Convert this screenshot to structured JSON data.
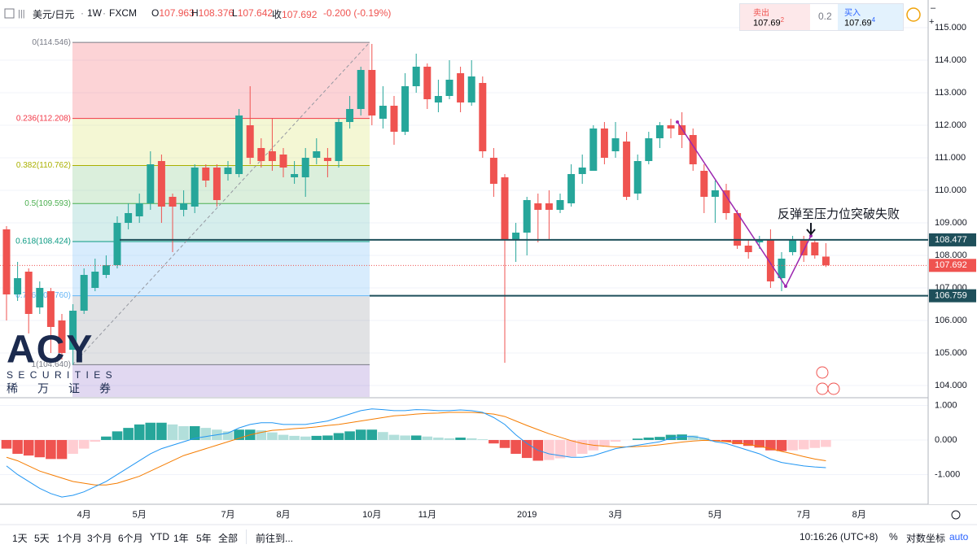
{
  "header": {
    "symbol": "美元/日元",
    "interval": "1W",
    "source": "FXCM",
    "open_label": "O",
    "open": 107.963,
    "high_label": "H",
    "high": 108.376,
    "low_label": "L",
    "low": 107.642,
    "close_label": "收",
    "close": 107.692,
    "change": {
      "value": -0.2,
      "label": "-0.200"
    },
    "change_pct": {
      "value": -0.19,
      "label": "(-0.19%)"
    }
  },
  "quote": {
    "sell_label": "卖出",
    "sell_price": "107.69",
    "sell_pip": "2",
    "spread": "0.2",
    "buy_label": "买入",
    "buy_price": "107.69",
    "buy_pip": "4"
  },
  "logo": {
    "name": "ACY",
    "sub": "SECURITIES",
    "cn": [
      "稀",
      "万",
      "证",
      "券"
    ]
  },
  "chart_data": {
    "type": "candlestick",
    "categories": [
      null,
      null,
      null,
      null,
      null,
      null,
      null,
      "4月",
      null,
      null,
      null,
      null,
      "5月",
      null,
      null,
      null,
      null,
      null,
      null,
      null,
      "7月",
      null,
      null,
      null,
      null,
      "8月",
      null,
      null,
      null,
      null,
      null,
      null,
      null,
      "10月",
      null,
      null,
      null,
      null,
      "11月",
      null,
      null,
      null,
      null,
      null,
      null,
      null,
      null,
      "2019",
      null,
      null,
      null,
      null,
      null,
      null,
      null,
      "3月",
      null,
      null,
      null,
      null,
      null,
      null,
      null,
      null,
      "5月",
      null,
      null,
      null,
      null,
      null,
      null,
      null,
      "7月",
      null,
      null,
      null,
      null,
      "8月"
    ],
    "open": [
      108.8,
      106.8,
      107.5,
      106.4,
      106.9,
      106.0,
      105.1,
      106.3,
      107.0,
      107.4,
      107.7,
      109.0,
      109.2,
      109.6,
      110.9,
      109.8,
      109.4,
      109.5,
      110.7,
      110.7,
      110.5,
      110.5,
      112.0,
      111.3,
      111.2,
      111.1,
      110.4,
      110.4,
      111.0,
      111.0,
      110.9,
      112.1,
      112.5,
      113.7,
      112.2,
      112.6,
      111.8,
      113.2,
      113.8,
      112.7,
      112.9,
      113.6,
      112.7,
      113.3,
      111.0,
      110.4,
      108.5,
      108.7,
      109.6,
      109.6,
      109.4,
      109.6,
      110.5,
      110.6,
      111.9,
      111.2,
      111.5,
      109.9,
      110.9,
      111.6,
      112.0,
      112.0,
      111.7,
      110.6,
      109.8,
      110.0,
      109.3,
      108.3,
      108.4,
      108.5,
      107.3,
      108.1,
      108.5,
      108.4,
      107.963,
      null,
      null,
      null
    ],
    "high": [
      108.9,
      107.8,
      107.6,
      107.2,
      107.0,
      106.2,
      106.5,
      107.6,
      107.9,
      108.0,
      109.2,
      109.6,
      109.9,
      111.2,
      111.1,
      109.9,
      110.0,
      110.8,
      110.8,
      110.8,
      110.9,
      112.5,
      113.2,
      111.6,
      112.2,
      111.3,
      110.9,
      111.3,
      111.6,
      111.3,
      112.2,
      112.9,
      113.8,
      114.5,
      113.2,
      112.9,
      113.6,
      114.2,
      113.9,
      113.4,
      114.0,
      113.8,
      114.0,
      113.5,
      111.3,
      110.5,
      109.0,
      109.8,
      109.9,
      110.0,
      109.9,
      110.8,
      111.1,
      112.0,
      112.1,
      112.1,
      111.8,
      111.1,
      111.8,
      112.1,
      112.2,
      112.4,
      111.9,
      110.8,
      110.3,
      110.2,
      109.4,
      108.5,
      108.6,
      108.8,
      108.1,
      108.6,
      108.6,
      108.5,
      108.376,
      null,
      null,
      null
    ],
    "low": [
      106.0,
      106.6,
      105.6,
      106.2,
      105.0,
      104.8,
      104.64,
      106.2,
      106.9,
      107.3,
      107.6,
      108.8,
      109.0,
      109.4,
      109.0,
      108.1,
      109.2,
      109.3,
      110.1,
      109.5,
      110.3,
      110.4,
      110.8,
      110.7,
      110.6,
      110.4,
      110.2,
      109.8,
      110.8,
      110.4,
      110.7,
      111.9,
      112.3,
      112.0,
      111.9,
      111.4,
      111.7,
      113.0,
      112.5,
      112.4,
      112.8,
      112.4,
      112.6,
      111.0,
      109.8,
      104.7,
      107.8,
      108.0,
      108.4,
      108.5,
      109.3,
      109.5,
      110.2,
      110.6,
      110.8,
      111.0,
      109.7,
      109.7,
      110.8,
      111.3,
      111.6,
      111.3,
      110.6,
      109.3,
      109.0,
      109.1,
      108.2,
      107.9,
      108.2,
      107.0,
      106.9,
      108.0,
      107.8,
      107.9,
      107.642,
      null,
      null,
      null
    ],
    "close": [
      106.8,
      107.3,
      106.2,
      107.0,
      105.8,
      105.0,
      106.3,
      107.4,
      107.5,
      107.7,
      109.0,
      109.3,
      109.6,
      110.8,
      109.5,
      109.5,
      109.6,
      110.7,
      110.3,
      109.7,
      110.7,
      112.3,
      111.0,
      110.9,
      110.9,
      110.7,
      110.5,
      111.0,
      111.2,
      110.9,
      112.1,
      112.5,
      113.7,
      112.3,
      112.6,
      111.8,
      113.2,
      113.8,
      112.8,
      112.9,
      113.4,
      112.7,
      113.5,
      111.2,
      110.2,
      108.5,
      108.7,
      109.7,
      109.4,
      109.4,
      109.7,
      110.5,
      110.7,
      111.9,
      111.0,
      111.6,
      109.8,
      110.9,
      111.6,
      112.0,
      111.9,
      111.7,
      110.8,
      109.8,
      110.0,
      109.3,
      108.3,
      108.1,
      108.5,
      107.2,
      107.9,
      108.5,
      108.0,
      108.0,
      107.692,
      null,
      null,
      null
    ],
    "up_color": "#26a69a",
    "down_color": "#ef5350",
    "ylim": [
      103.65,
      115.85
    ],
    "yticks": [
      {
        "value": 115,
        "label": "115.000"
      },
      {
        "value": 114,
        "label": "114.000"
      },
      {
        "value": 113,
        "label": "113.000"
      },
      {
        "value": 112,
        "label": "112.000"
      },
      {
        "value": 111,
        "label": "111.000"
      },
      {
        "value": 110,
        "label": "110.000"
      },
      {
        "value": 109,
        "label": "109.000"
      },
      {
        "value": 108,
        "label": "108.000"
      },
      {
        "value": 107,
        "label": "107.000"
      },
      {
        "value": 106,
        "label": "106.000"
      },
      {
        "value": 105,
        "label": "105.000"
      },
      {
        "value": 104,
        "label": "104.000"
      }
    ],
    "fib": [
      {
        "value": 114.546,
        "label": "0(114.546)",
        "color": "#787b86",
        "fill": "rgba(242,54,69,0.22)"
      },
      {
        "value": 112.208,
        "label": "0.236(112.208)",
        "color": "#f23645",
        "fill": "rgba(205,220,57,0.22)"
      },
      {
        "value": 110.762,
        "label": "0.382(110.762)",
        "color": "#aab000",
        "fill": "rgba(76,175,80,0.2)"
      },
      {
        "value": 109.593,
        "label": "0.5(109.593)",
        "color": "#4caf50",
        "fill": "rgba(0,150,136,0.16)"
      },
      {
        "value": 108.424,
        "label": "0.618(108.424)",
        "color": "#089981",
        "fill": "rgba(100,181,246,0.25)"
      },
      {
        "value": 106.76,
        "label": "0.786(106.760)",
        "color": "#64b5f6",
        "fill": "rgba(120,123,134,0.22)"
      },
      {
        "value": 104.64,
        "label": "1(104.640)",
        "color": "#787b86",
        "fill": "rgba(103,58,183,0.2)"
      }
    ],
    "price_lines": [
      108.477,
      106.759
    ],
    "last_price": 107.692,
    "annotation": "反弹至压力位突破失败",
    "macd": {
      "histogram": [
        -0.25,
        -0.4,
        -0.45,
        -0.5,
        -0.55,
        -0.55,
        -0.4,
        -0.25,
        -0.05,
        0.1,
        0.25,
        0.35,
        0.45,
        0.5,
        0.5,
        0.45,
        0.4,
        0.4,
        0.35,
        0.3,
        0.25,
        0.3,
        0.3,
        0.28,
        0.22,
        0.15,
        0.12,
        0.1,
        0.12,
        0.13,
        0.2,
        0.25,
        0.3,
        0.3,
        0.23,
        0.15,
        0.13,
        0.13,
        0.1,
        0.07,
        0.05,
        0.07,
        0.05,
        0.02,
        -0.1,
        -0.23,
        -0.4,
        -0.52,
        -0.6,
        -0.58,
        -0.53,
        -0.48,
        -0.4,
        -0.3,
        -0.17,
        -0.05,
        0,
        0.04,
        0.07,
        0.09,
        0.15,
        0.16,
        0.13,
        0.06,
        -0.03,
        -0.05,
        -0.12,
        -0.17,
        -0.22,
        -0.3,
        -0.32,
        -0.3,
        -0.27,
        -0.23,
        -0.2,
        null,
        null,
        null
      ],
      "macd": [
        -0.75,
        -1.0,
        -1.2,
        -1.4,
        -1.55,
        -1.65,
        -1.6,
        -1.5,
        -1.35,
        -1.2,
        -1.0,
        -0.8,
        -0.6,
        -0.4,
        -0.25,
        -0.15,
        -0.05,
        0.05,
        0.1,
        0.15,
        0.2,
        0.35,
        0.45,
        0.5,
        0.5,
        0.45,
        0.45,
        0.45,
        0.5,
        0.55,
        0.65,
        0.75,
        0.85,
        0.9,
        0.88,
        0.85,
        0.85,
        0.88,
        0.87,
        0.85,
        0.85,
        0.87,
        0.85,
        0.8,
        0.65,
        0.45,
        0.15,
        -0.1,
        -0.3,
        -0.4,
        -0.45,
        -0.5,
        -0.5,
        -0.45,
        -0.35,
        -0.25,
        -0.2,
        -0.15,
        -0.1,
        -0.05,
        0.05,
        0.1,
        0.1,
        0.05,
        -0.05,
        -0.1,
        -0.2,
        -0.3,
        -0.4,
        -0.55,
        -0.65,
        -0.7,
        -0.75,
        -0.78,
        -0.8,
        null,
        null,
        null
      ],
      "signal": [
        -0.5,
        -0.6,
        -0.75,
        -0.9,
        -1.0,
        -1.1,
        -1.2,
        -1.25,
        -1.3,
        -1.3,
        -1.25,
        -1.15,
        -1.05,
        -0.9,
        -0.75,
        -0.6,
        -0.45,
        -0.35,
        -0.25,
        -0.15,
        -0.05,
        0.05,
        0.15,
        0.22,
        0.28,
        0.3,
        0.33,
        0.35,
        0.38,
        0.42,
        0.45,
        0.5,
        0.55,
        0.6,
        0.65,
        0.7,
        0.72,
        0.75,
        0.77,
        0.78,
        0.8,
        0.8,
        0.8,
        0.78,
        0.75,
        0.68,
        0.55,
        0.42,
        0.3,
        0.18,
        0.08,
        -0.02,
        -0.1,
        -0.15,
        -0.18,
        -0.2,
        -0.2,
        -0.19,
        -0.17,
        -0.14,
        -0.1,
        -0.06,
        -0.03,
        -0.01,
        -0.02,
        -0.05,
        -0.08,
        -0.13,
        -0.18,
        -0.25,
        -0.33,
        -0.4,
        -0.48,
        -0.55,
        -0.6,
        null,
        null,
        null
      ],
      "macd_color": "#2196f3",
      "signal_color": "#f57c00",
      "hist_colors": [
        "#26a69a",
        "#b2dfdb",
        "#ef5350",
        "#ffcdd2"
      ],
      "ylim": [
        -1.86,
        1.2
      ],
      "yticks": [
        {
          "value": 1,
          "label": "1.000"
        },
        {
          "value": 0,
          "label": "0.000"
        },
        {
          "value": -1,
          "label": "-1.000"
        }
      ]
    }
  },
  "toolbar": {
    "ranges": [
      "1天",
      "5天",
      "1个月",
      "3个月",
      "6个月",
      "YTD",
      "1年",
      "5年",
      "全部"
    ],
    "goto": "前往到...",
    "time": "10:16:26 (UTC+8)",
    "percent": "%",
    "log": "对数坐标",
    "auto": "auto"
  }
}
